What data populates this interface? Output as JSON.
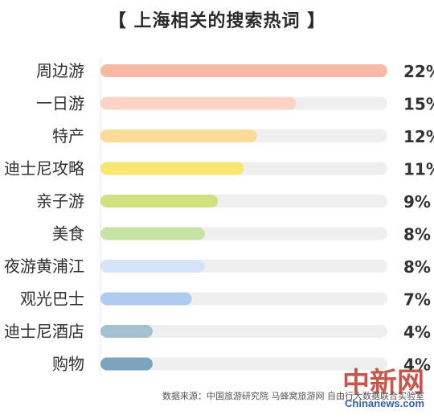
{
  "title": "【 上海相关的搜索热词 】",
  "source": "数据来源：中国旅游研究院 马蜂窝旅游网 自由行大数据联合实验室",
  "watermark": {
    "cn": "中新网",
    "en": "Chinanews.com"
  },
  "chart_data": {
    "type": "bar",
    "orientation": "horizontal",
    "title": "【 上海相关的搜索热词 】",
    "categories": [
      "周边游",
      "一日游",
      "特产",
      "迪士尼攻略",
      "亲子游",
      "美食",
      "夜游黄浦江",
      "观光巴士",
      "迪士尼酒店",
      "购物"
    ],
    "values": [
      22,
      15,
      12,
      11,
      9,
      8,
      8,
      7,
      4,
      4
    ],
    "value_labels": [
      "22%",
      "15%",
      "12%",
      "11%",
      "9%",
      "8%",
      "8%",
      "7%",
      "4%",
      "4%"
    ],
    "unit": "%",
    "xlim": [
      0,
      22
    ],
    "bar_colors": [
      "#f7b8a5",
      "#fdd3c5",
      "#fbdb98",
      "#f8e672",
      "#d1e17f",
      "#c6e3a5",
      "#d5e5f8",
      "#aecbf0",
      "#a5c1d1",
      "#7ea4bd"
    ],
    "track_color": "#efefef",
    "grid": false
  }
}
